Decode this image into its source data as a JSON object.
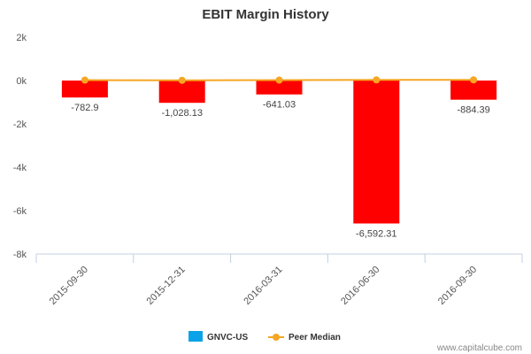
{
  "chart_data": {
    "type": "bar",
    "title": "EBIT Margin History",
    "categories": [
      "2015-09-30",
      "2015-12-31",
      "2016-03-31",
      "2016-06-30",
      "2016-09-30"
    ],
    "series": [
      {
        "name": "GNVC-US",
        "type": "bar",
        "legend_color": "#0aa2e8",
        "bar_color": "#ff0000",
        "values": [
          -782.9,
          -1028.13,
          -641.03,
          -6592.31,
          -884.39
        ],
        "data_labels": [
          "-782.9",
          "-1,028.13",
          "-641.03",
          "-6,592.31",
          "-884.39"
        ]
      },
      {
        "name": "Peer Median",
        "type": "line",
        "color": "#f5a623",
        "values": [
          20,
          10,
          20,
          30,
          30
        ]
      }
    ],
    "ylim": [
      -8000,
      2000
    ],
    "yticks": [
      2000,
      0,
      -2000,
      -4000,
      -6000,
      -8000
    ],
    "ytick_labels": [
      "2k",
      "0k",
      "-2k",
      "-4k",
      "-6k",
      "-8k"
    ],
    "grid": false,
    "legend_position": "bottom-center"
  },
  "credit": "www.capitalcube.com"
}
